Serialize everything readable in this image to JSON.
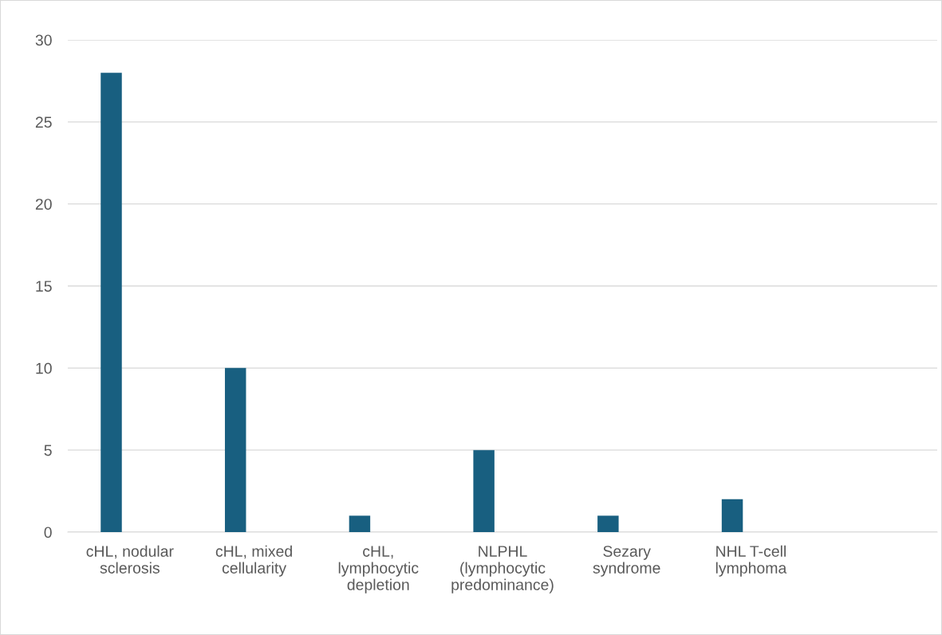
{
  "chart_data": {
    "type": "bar",
    "categories": [
      "cHL, nodular\nsclerosis",
      "cHL, mixed\ncellularity",
      "cHL,\nlymphocytic\ndepletion",
      "NLPHL\n(lymphocytic\npredominance)",
      "Sezary\nsyndrome",
      "NHL T-cell\nlymphoma",
      null
    ],
    "values": [
      28,
      10,
      1,
      5,
      1,
      2,
      null
    ],
    "color": "#185f80",
    "ylim": [
      0,
      30
    ],
    "yticks": [
      0,
      5,
      10,
      15,
      20,
      25,
      30
    ],
    "grid": "y"
  }
}
